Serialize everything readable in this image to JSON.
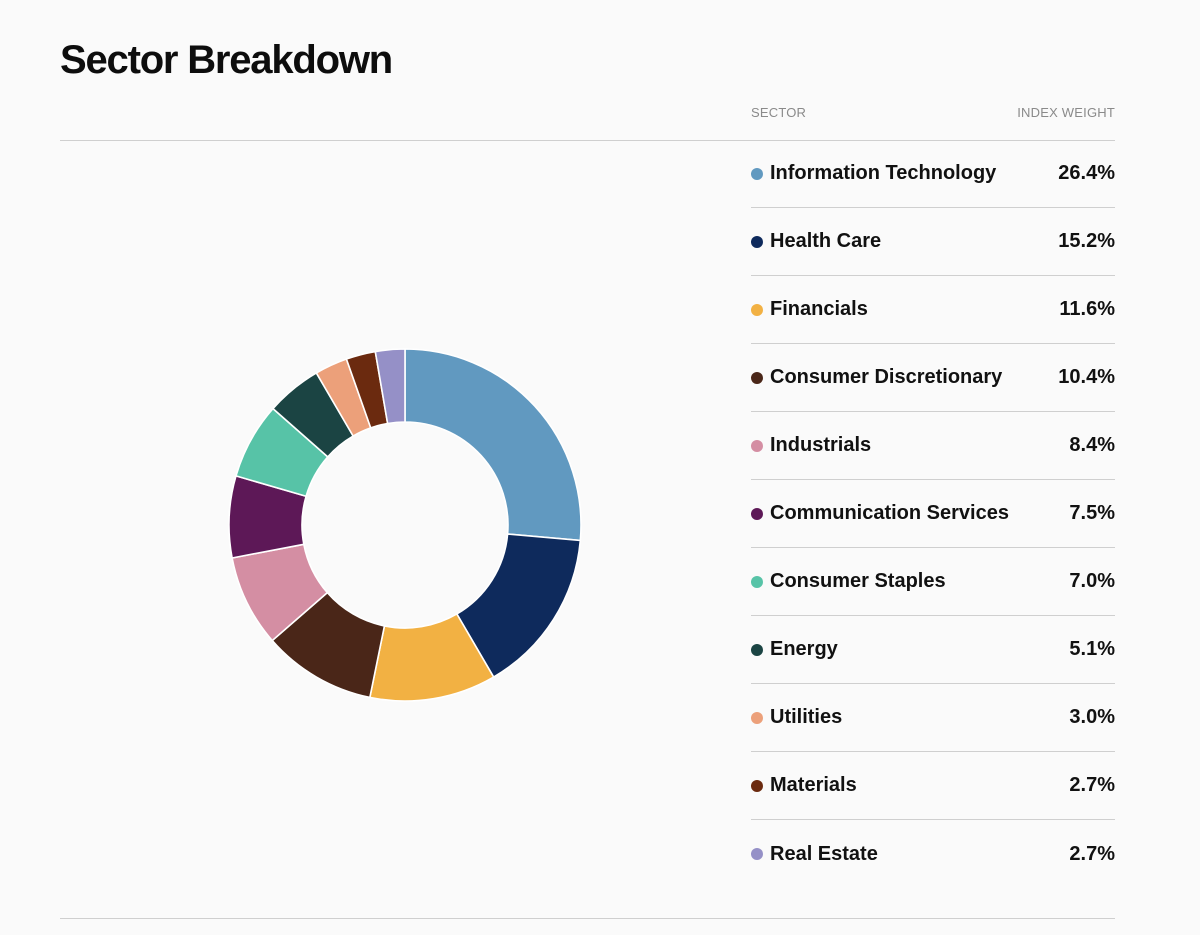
{
  "header": {
    "title": "Sector Breakdown"
  },
  "table": {
    "col_sector": "SECTOR",
    "col_weight": "INDEX WEIGHT",
    "rows": [
      {
        "label": "Information Technology",
        "value": "26.4%"
      },
      {
        "label": "Health Care",
        "value": "15.2%"
      },
      {
        "label": "Financials",
        "value": "11.6%"
      },
      {
        "label": "Consumer Discretionary",
        "value": "10.4%"
      },
      {
        "label": "Industrials",
        "value": "8.4%"
      },
      {
        "label": "Communication Services",
        "value": "7.5%"
      },
      {
        "label": "Consumer Staples",
        "value": "7.0%"
      },
      {
        "label": "Energy",
        "value": "5.1%"
      },
      {
        "label": "Utilities",
        "value": "3.0%"
      },
      {
        "label": "Materials",
        "value": "2.7%"
      },
      {
        "label": "Real Estate",
        "value": "2.7%"
      }
    ]
  },
  "chart_data": {
    "type": "pie",
    "style": "donut",
    "title": "Sector Breakdown",
    "categories": [
      "Information Technology",
      "Health Care",
      "Financials",
      "Consumer Discretionary",
      "Industrials",
      "Communication Services",
      "Consumer Staples",
      "Energy",
      "Utilities",
      "Materials",
      "Real Estate"
    ],
    "values": [
      26.4,
      15.2,
      11.6,
      10.4,
      8.4,
      7.5,
      7.0,
      5.1,
      3.0,
      2.7,
      2.7
    ],
    "unit": "%",
    "colors": [
      "#6199c0",
      "#0e2a5c",
      "#f2b143",
      "#4a2618",
      "#d48ea3",
      "#5d1857",
      "#57c3a7",
      "#1b4443",
      "#eca07a",
      "#6b2a0f",
      "#9590c7"
    ],
    "legend": "right"
  }
}
